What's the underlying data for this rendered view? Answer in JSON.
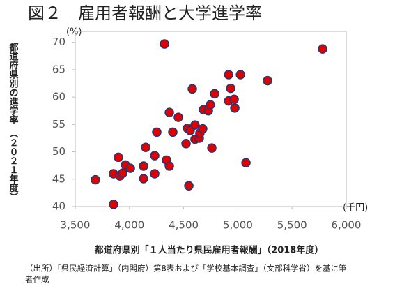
{
  "chart_data": {
    "type": "scatter",
    "title": "図２　雇用者報酬と大学進学率",
    "y_label": "都道府県別の進学率　（２０２１年度）",
    "x_label": "都道府県別「１人当たり県民雇用者報酬」（2018年度）",
    "y_unit": "(%)",
    "x_unit": "(千円)",
    "note": [
      "（出所）「県民経済計算」（内閣府）第8表および「学校基本調査」（文部科学省）を基に筆",
      "者作成"
    ],
    "xlim": [
      3500,
      6000
    ],
    "ylim": [
      40,
      72
    ],
    "xticks": [
      {
        "value": 3500,
        "label": "3,500"
      },
      {
        "value": 4000,
        "label": "4,000"
      },
      {
        "value": 4500,
        "label": "4,500"
      },
      {
        "value": 5000,
        "label": "5,000"
      },
      {
        "value": 5500,
        "label": "5,500"
      },
      {
        "value": 6000,
        "label": "6,000"
      }
    ],
    "yticks": [
      40,
      45,
      50,
      55,
      60,
      65,
      70
    ],
    "color": "#e00000",
    "edge_color": "#1f3a7a",
    "x": [
      3686,
      3853,
      3853,
      3898,
      3911,
      3937,
      3963,
      4008,
      4130,
      4130,
      4150,
      4233,
      4233,
      4252,
      4323,
      4342,
      4368,
      4368,
      4400,
      4451,
      4522,
      4535,
      4548,
      4560,
      4580,
      4605,
      4605,
      4644,
      4650,
      4676,
      4683,
      4728,
      4747,
      4760,
      4786,
      4915,
      4915,
      4934,
      4966,
      4972,
      5024,
      5075,
      5274,
      5782
    ],
    "values": [
      44.9,
      40.4,
      46.0,
      49.0,
      45.6,
      46.1,
      47.6,
      47.0,
      47.4,
      45.1,
      50.8,
      49.3,
      46.0,
      53.6,
      69.7,
      48.5,
      47.4,
      57.2,
      53.6,
      56.3,
      51.5,
      54.3,
      43.8,
      53.9,
      61.5,
      52.3,
      54.9,
      52.5,
      53.4,
      54.2,
      57.7,
      57.5,
      58.6,
      50.7,
      60.6,
      64.1,
      59.3,
      61.6,
      59.6,
      58.0,
      64.1,
      48.0,
      63.0,
      68.8
    ]
  }
}
